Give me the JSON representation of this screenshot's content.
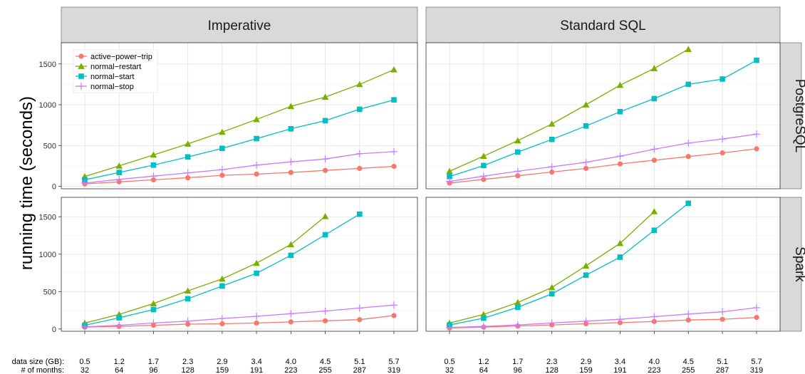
{
  "chart_data": {
    "type": "line",
    "ylabel": "running time (seconds)",
    "xaxis_prefix_labels": [
      "data size (GB):",
      "# of months:"
    ],
    "x_ticks_size": [
      "0.5",
      "1.2",
      "1.7",
      "2.3",
      "2.9",
      "3.4",
      "4.0",
      "4.5",
      "5.1",
      "5.7"
    ],
    "x_ticks_months": [
      "32",
      "64",
      "96",
      "128",
      "159",
      "191",
      "223",
      "255",
      "287",
      "319"
    ],
    "yticks": [
      0,
      500,
      1000,
      1500
    ],
    "ylim": [
      -30,
      1760
    ],
    "grid": true,
    "legend_position": "top-left (inside Imperative / PostgreSQL panel)",
    "column_strips": [
      "Imperative",
      "Standard SQL"
    ],
    "row_strips": [
      "PostgreSQL",
      "Spark"
    ],
    "series_styles": [
      {
        "name": "active−power−trip",
        "color": "#F8766D",
        "marker": "circle"
      },
      {
        "name": "normal−restart",
        "color": "#7CAE00",
        "marker": "triangle"
      },
      {
        "name": "normal−start",
        "color": "#00BFC4",
        "marker": "square"
      },
      {
        "name": "normal−stop",
        "color": "#C77CFF",
        "marker": "plus"
      }
    ],
    "panels": [
      {
        "column": "Imperative",
        "row": "PostgreSQL",
        "series": [
          {
            "name": "active−power−trip",
            "values": [
              30,
              55,
              80,
              105,
              135,
              150,
              170,
              195,
              220,
              245
            ]
          },
          {
            "name": "normal−restart",
            "values": [
              120,
              250,
              385,
              520,
              665,
              820,
              980,
              1095,
              1250,
              1430
            ]
          },
          {
            "name": "normal−start",
            "values": [
              80,
              170,
              260,
              360,
              465,
              585,
              705,
              805,
              945,
              1060
            ]
          },
          {
            "name": "normal−stop",
            "values": [
              40,
              85,
              125,
              165,
              205,
              260,
              300,
              335,
              400,
              425
            ]
          }
        ]
      },
      {
        "column": "Standard SQL",
        "row": "PostgreSQL",
        "series": [
          {
            "name": "active−power−trip",
            "values": [
              40,
              85,
              130,
              175,
              220,
              275,
              320,
              365,
              410,
              460
            ]
          },
          {
            "name": "normal−restart",
            "values": [
              185,
              370,
              560,
              765,
              1000,
              1240,
              1445,
              1680,
              null,
              null
            ]
          },
          {
            "name": "normal−start",
            "values": [
              120,
              255,
              420,
              575,
              740,
              915,
              1075,
              1250,
              1315,
              1545
            ]
          },
          {
            "name": "normal−stop",
            "values": [
              60,
              125,
              185,
              240,
              295,
              370,
              455,
              530,
              580,
              640
            ]
          }
        ]
      },
      {
        "column": "Imperative",
        "row": "Spark",
        "series": [
          {
            "name": "active−power−trip",
            "values": [
              25,
              35,
              50,
              65,
              70,
              80,
              95,
              110,
              125,
              180
            ]
          },
          {
            "name": "normal−restart",
            "values": [
              80,
              195,
              340,
              510,
              670,
              880,
              1130,
              1505,
              null,
              null
            ]
          },
          {
            "name": "normal−start",
            "values": [
              50,
              150,
              260,
              405,
              575,
              745,
              985,
              1260,
              1535,
              null
            ]
          },
          {
            "name": "normal−stop",
            "values": [
              30,
              50,
              80,
              105,
              140,
              170,
              205,
              240,
              280,
              320
            ]
          }
        ]
      },
      {
        "column": "Standard SQL",
        "row": "Spark",
        "series": [
          {
            "name": "active−power−trip",
            "values": [
              15,
              25,
              40,
              55,
              70,
              85,
              100,
              120,
              130,
              155
            ]
          },
          {
            "name": "normal−restart",
            "values": [
              80,
              195,
              355,
              555,
              845,
              1145,
              1570,
              null,
              null,
              null
            ]
          },
          {
            "name": "normal−start",
            "values": [
              55,
              145,
              290,
              470,
              720,
              960,
              1320,
              1680,
              null,
              null
            ]
          },
          {
            "name": "normal−stop",
            "values": [
              20,
              35,
              55,
              80,
              105,
              130,
              165,
              200,
              230,
              285
            ]
          }
        ]
      }
    ]
  }
}
